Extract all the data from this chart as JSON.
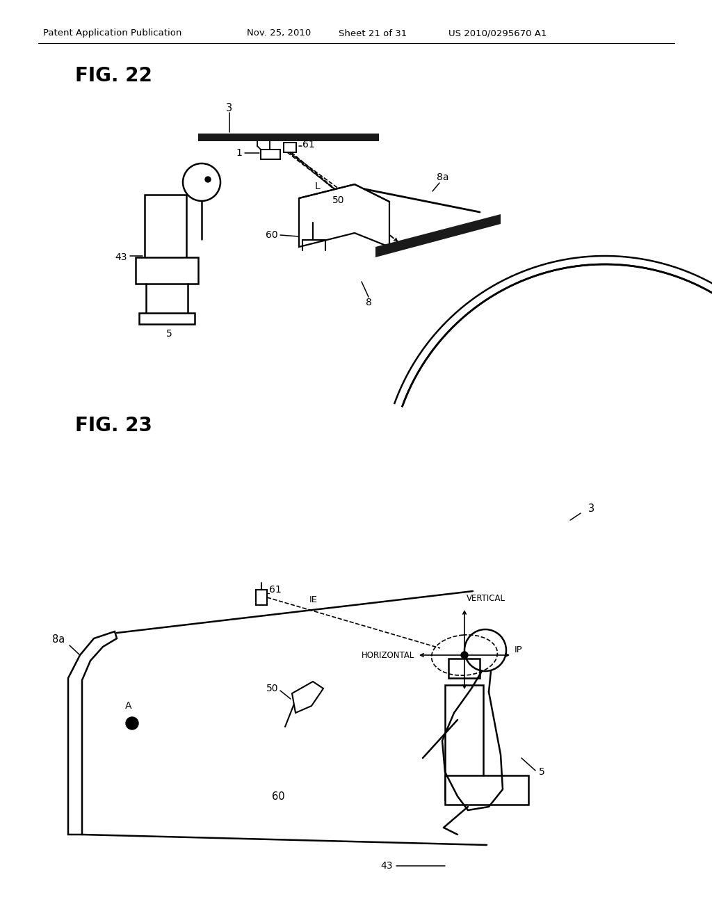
{
  "background_color": "#ffffff",
  "header_text": "Patent Application Publication",
  "header_date": "Nov. 25, 2010",
  "header_sheet": "Sheet 21 of 31",
  "header_patent": "US 2010/0295670 A1",
  "fig22_title": "FIG. 22",
  "fig23_title": "FIG. 23"
}
